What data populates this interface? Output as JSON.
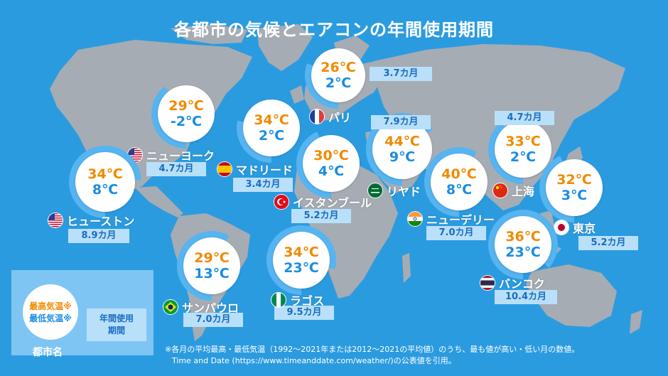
{
  "title": "各都市の気候とエアコンの年間使用期間",
  "colors": {
    "background": "#2b9be0",
    "land": "#a6acb3",
    "high": "#f08a00",
    "low": "#1a8de0",
    "ring": "#56b4f0",
    "duration_bg": "#b9e0fa"
  },
  "cities": [
    {
      "name": "パリ",
      "high": "26℃",
      "low": "2℃",
      "duration": "3.7カ月",
      "months": 3.7,
      "flag": "france-flag"
    },
    {
      "name": "ニューヨーク",
      "high": "29℃",
      "low": "-2℃",
      "duration": "4.7カ月",
      "months": 4.7,
      "flag": "usa-flag"
    },
    {
      "name": "マドリード",
      "high": "34℃",
      "low": "2℃",
      "duration": "3.4カ月",
      "months": 3.4,
      "flag": "spain-flag"
    },
    {
      "name": "イスタンブール",
      "high": "30℃",
      "low": "4℃",
      "duration": "5.2カ月",
      "months": 5.2,
      "flag": "turkey-flag"
    },
    {
      "name": "リヤド",
      "high": "44℃",
      "low": "9℃",
      "duration": "7.9カ月",
      "months": 7.9,
      "flag": "saudi-flag"
    },
    {
      "name": "ニューデリー",
      "high": "40℃",
      "low": "8℃",
      "duration": "7.0カ月",
      "months": 7.0,
      "flag": "india-flag"
    },
    {
      "name": "上海",
      "high": "33℃",
      "low": "2℃",
      "duration": "4.7カ月",
      "months": 4.7,
      "flag": "china-flag"
    },
    {
      "name": "東京",
      "high": "32℃",
      "low": "3℃",
      "duration": "5.2カ月",
      "months": 5.2,
      "flag": "japan-flag"
    },
    {
      "name": "ヒューストン",
      "high": "34℃",
      "low": "8℃",
      "duration": "8.9カ月",
      "months": 8.9,
      "flag": "usa-flag"
    },
    {
      "name": "サンパウロ",
      "high": "29℃",
      "low": "13℃",
      "duration": "7.0カ月",
      "months": 7.0,
      "flag": "brazil-flag"
    },
    {
      "name": "ラゴス",
      "high": "34℃",
      "low": "23℃",
      "duration": "9.5カ月",
      "months": 9.5,
      "flag": "nigeria-flag"
    },
    {
      "name": "バンコク",
      "high": "36℃",
      "low": "23℃",
      "duration": "10.4カ月",
      "months": 10.4,
      "flag": "thailand-flag"
    }
  ],
  "legend": {
    "high": "最高気温※",
    "low": "最低気温※",
    "duration": "年間使用\n期間",
    "city": "都市名"
  },
  "note": {
    "line1": "※各月の平均最高・最低気温（1992～2021年または2012～2021の平均値）のうち、最も値が高い・低い月の数値。",
    "line2": "Time and Date (https://www.timeanddate.com/weather/)の公表値を引用。"
  }
}
